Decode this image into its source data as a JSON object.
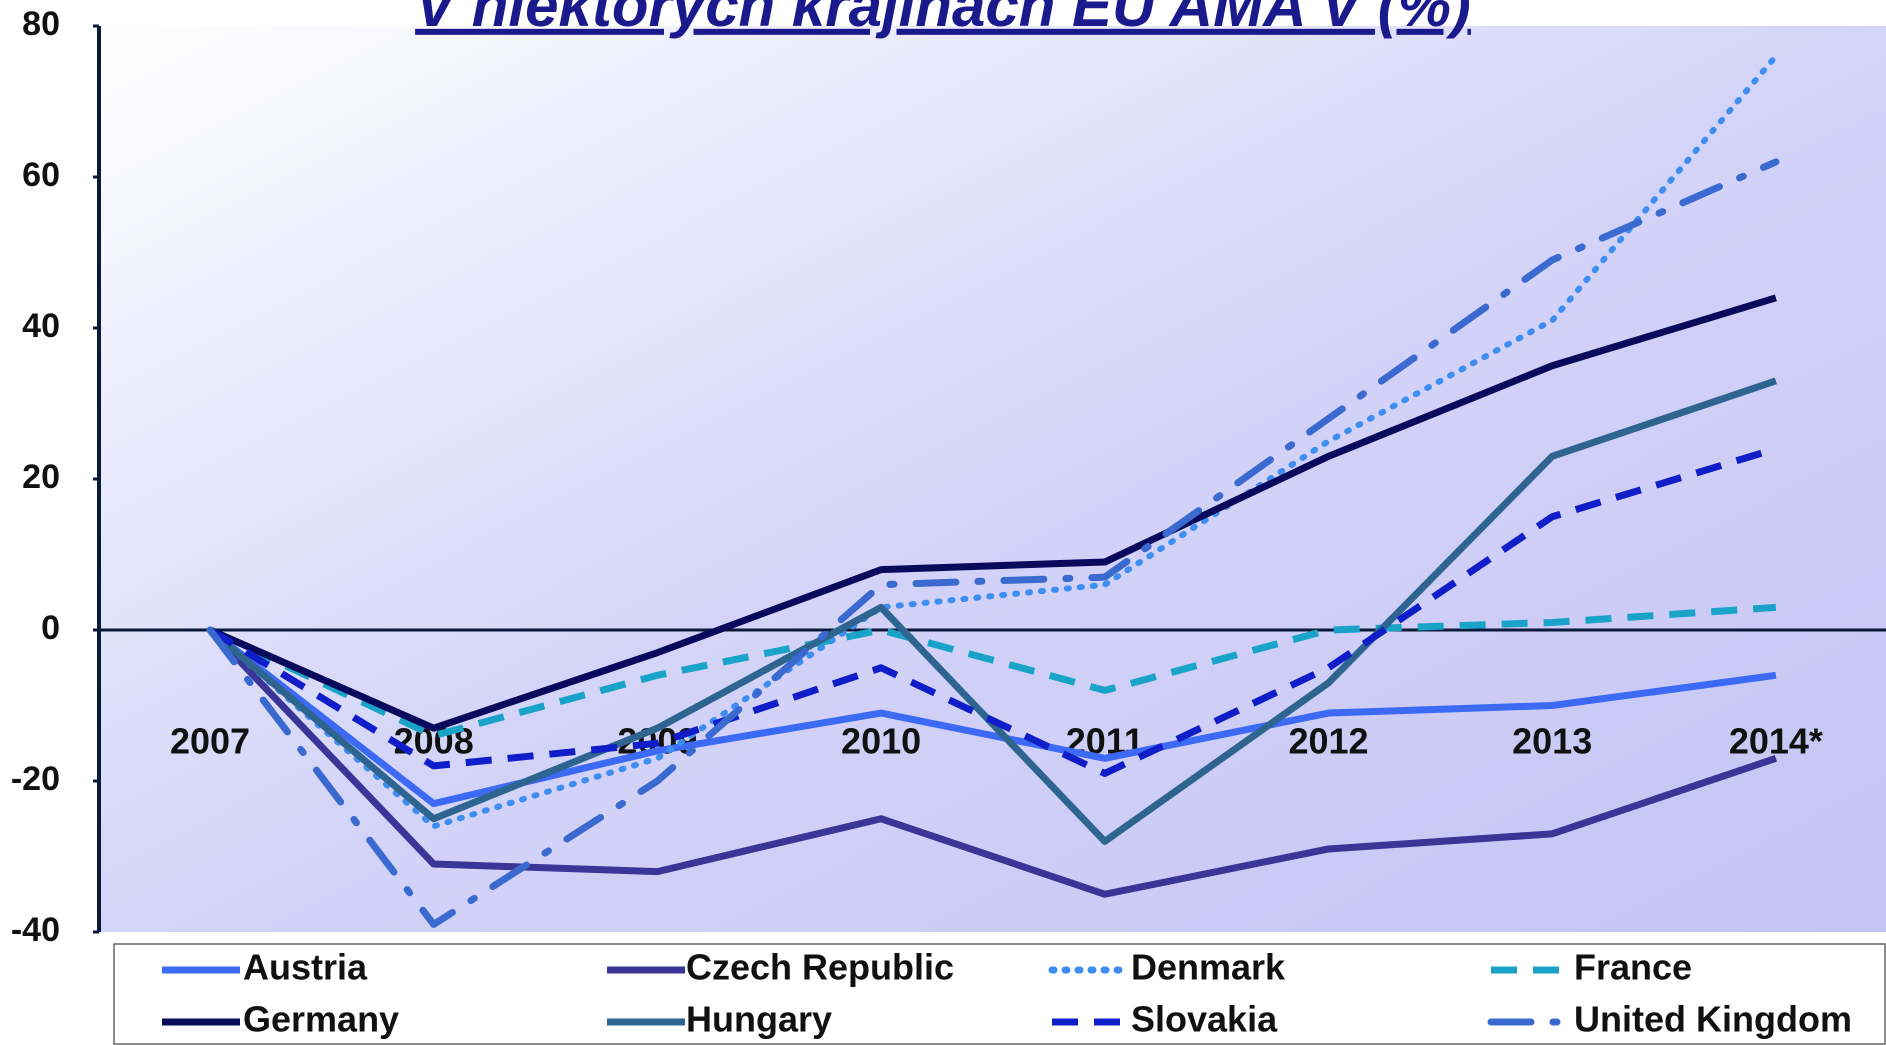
{
  "chart_data": {
    "type": "line",
    "title": "V niektorých krajinách EÚ AMA V (%)",
    "categories": [
      "2007",
      "2008",
      "2009",
      "2010",
      "2011",
      "2012",
      "2013",
      "2014*"
    ],
    "series": [
      {
        "name": "Austria",
        "color": "#3d6af5",
        "style": "solid",
        "values": [
          0,
          -23,
          -16,
          -11,
          -17,
          -11,
          -10,
          -6
        ]
      },
      {
        "name": "Czech Republic",
        "color": "#3a3596",
        "style": "solid",
        "values": [
          0,
          -31,
          -32,
          -25,
          -35,
          -29,
          -27,
          -17
        ]
      },
      {
        "name": "Denmark",
        "color": "#3d8ef0",
        "style": "dotted",
        "values": [
          0,
          -26,
          -17,
          3,
          6,
          25,
          41,
          76
        ]
      },
      {
        "name": "France",
        "color": "#1aa3c8",
        "style": "dashed",
        "values": [
          0,
          -14,
          -6,
          0,
          -8,
          0,
          1,
          3
        ]
      },
      {
        "name": "Germany",
        "color": "#0a0a5c",
        "style": "solid",
        "values": [
          0,
          -13,
          -3,
          8,
          9,
          23,
          35,
          44
        ]
      },
      {
        "name": "Hungary",
        "color": "#2e6590",
        "style": "solid",
        "values": [
          0,
          -25,
          -13,
          3,
          -28,
          -7,
          23,
          33
        ]
      },
      {
        "name": "Slovakia",
        "color": "#0f1ec8",
        "style": "dashed",
        "values": [
          0,
          -18,
          -15,
          -5,
          -19,
          -5,
          15,
          24
        ]
      },
      {
        "name": "United Kingdom",
        "color": "#3a6ad0",
        "style": "dashdot",
        "values": [
          0,
          -39,
          -20,
          6,
          7,
          28,
          49,
          62
        ]
      }
    ],
    "ylim": [
      -40,
      80
    ],
    "yticks": [
      -40,
      -20,
      0,
      20,
      40,
      60,
      80
    ]
  }
}
